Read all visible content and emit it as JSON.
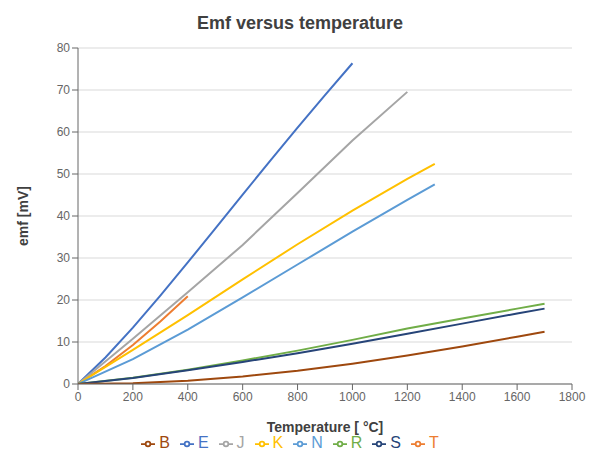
{
  "chart_data": {
    "type": "line",
    "title": "Emf versus temperature",
    "xlabel": "Temperature [ °C]",
    "ylabel": "emf [mV]",
    "series": [
      {
        "name": "E",
        "color": "#4472C4",
        "x": [
          0,
          100,
          200,
          300,
          400,
          500,
          600,
          700,
          800,
          900,
          1000
        ],
        "values": [
          0,
          6.319,
          13.421,
          21.036,
          28.943,
          37.005,
          45.093,
          53.112,
          61.017,
          68.787,
          76.373
        ]
      },
      {
        "name": "T",
        "color": "#ED7D31",
        "x": [
          0,
          100,
          200,
          300,
          400
        ],
        "values": [
          0,
          4.279,
          9.288,
          14.862,
          20.872
        ]
      },
      {
        "name": "J",
        "color": "#A5A5A5",
        "x": [
          0,
          200,
          400,
          600,
          800,
          1000,
          1200
        ],
        "values": [
          0,
          10.779,
          21.848,
          33.102,
          45.494,
          57.953,
          69.553
        ]
      },
      {
        "name": "K",
        "color": "#FFC000",
        "x": [
          0,
          200,
          400,
          600,
          800,
          1000,
          1200,
          1300
        ],
        "values": [
          0,
          8.138,
          16.397,
          24.906,
          33.275,
          41.276,
          48.838,
          52.41
        ]
      },
      {
        "name": "N",
        "color": "#5B9BD5",
        "x": [
          0,
          200,
          400,
          600,
          800,
          1000,
          1200,
          1300
        ],
        "values": [
          0,
          5.913,
          12.974,
          20.613,
          28.455,
          36.256,
          43.846,
          47.513
        ]
      },
      {
        "name": "R",
        "color": "#70AD47",
        "x": [
          0,
          200,
          400,
          600,
          800,
          1000,
          1200,
          1400,
          1600,
          1700
        ],
        "values": [
          0,
          1.469,
          3.408,
          5.583,
          7.95,
          10.506,
          13.228,
          15.582,
          17.947,
          19.101
        ]
      },
      {
        "name": "S",
        "color": "#264478",
        "x": [
          0,
          200,
          400,
          600,
          800,
          1000,
          1200,
          1400,
          1600,
          1700
        ],
        "values": [
          0,
          1.441,
          3.259,
          5.239,
          7.345,
          9.587,
          11.951,
          14.373,
          16.777,
          17.947
        ]
      },
      {
        "name": "B",
        "color": "#9E480E",
        "x": [
          0,
          200,
          400,
          600,
          800,
          1000,
          1200,
          1400,
          1600,
          1700
        ],
        "values": [
          0,
          0.178,
          0.787,
          1.792,
          3.154,
          4.834,
          6.786,
          8.952,
          11.263,
          12.433
        ]
      }
    ],
    "xlim": [
      0,
      1800
    ],
    "ylim": [
      0,
      80
    ],
    "xticks": [
      0,
      200,
      400,
      600,
      800,
      1000,
      1200,
      1400,
      1600,
      1800
    ],
    "yticks": [
      0,
      10,
      20,
      30,
      40,
      50,
      60,
      70,
      80
    ],
    "grid": "y",
    "legend": "bottom"
  }
}
